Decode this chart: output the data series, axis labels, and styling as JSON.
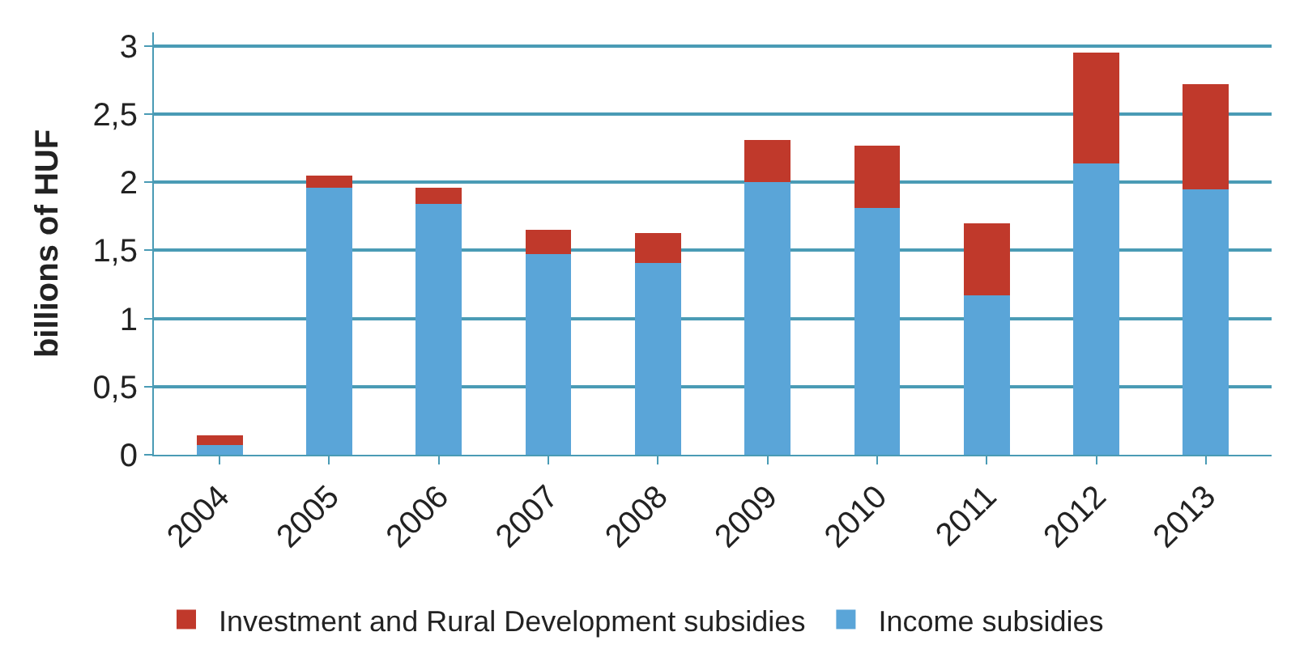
{
  "chart_data": {
    "type": "bar",
    "stacked": true,
    "ylabel": "billions of HUF",
    "categories": [
      "2004",
      "2005",
      "2006",
      "2007",
      "2008",
      "2009",
      "2010",
      "2011",
      "2012",
      "2013"
    ],
    "series": [
      {
        "name": "Income subsidies",
        "color": "#5aa5d8",
        "values": [
          0.07,
          1.96,
          1.84,
          1.47,
          1.41,
          2.0,
          1.81,
          1.17,
          2.14,
          1.95
        ]
      },
      {
        "name": "Investment and Rural Development subsidies",
        "color": "#c0392b",
        "values": [
          0.07,
          0.09,
          0.12,
          0.18,
          0.22,
          0.31,
          0.46,
          0.53,
          0.81,
          0.77
        ]
      }
    ],
    "ylim": [
      0,
      3.1
    ],
    "yticks": [
      0,
      {
        "value": 0.5,
        "label": "0,5"
      },
      1,
      {
        "value": 1.5,
        "label": "1,5"
      },
      2,
      {
        "value": 2.5,
        "label": "2,5"
      },
      3
    ],
    "grid": "y",
    "legend": "bottom"
  }
}
